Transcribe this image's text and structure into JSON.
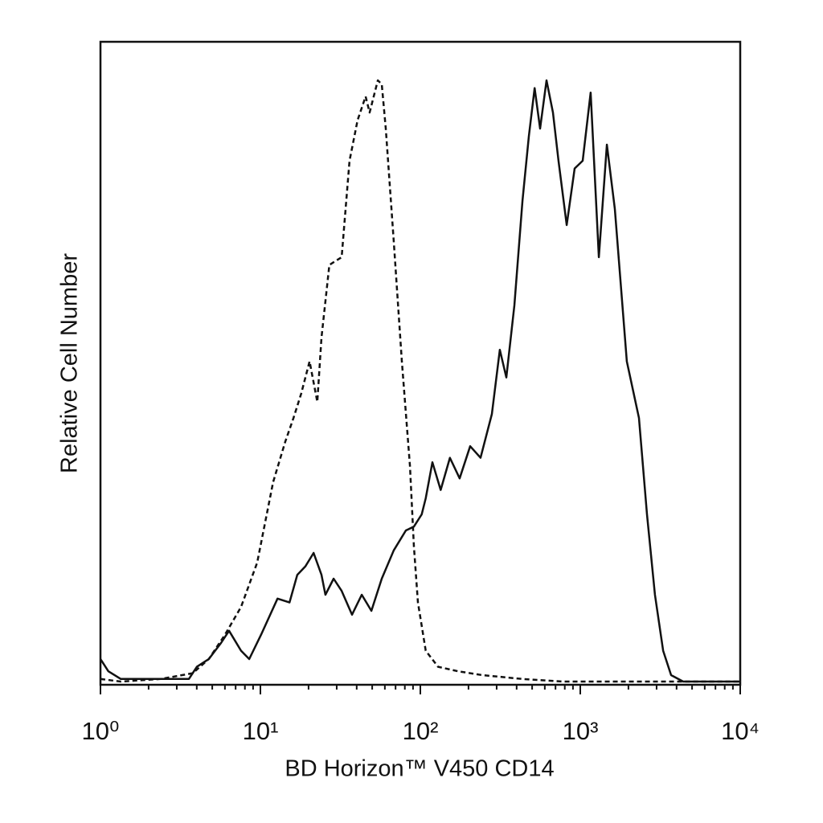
{
  "chart_data": {
    "type": "line",
    "x_label": "BD Horizon™ V450 CD14",
    "y_label": "Relative Cell Number",
    "xlog": true,
    "xlim": [
      1,
      10000
    ],
    "xticks": [
      {
        "value": 1,
        "label": "10⁰"
      },
      {
        "value": 10,
        "label": "10¹"
      },
      {
        "value": 100,
        "label": "10²"
      },
      {
        "value": 1000,
        "label": "10³"
      },
      {
        "value": 10000,
        "label": "10⁴"
      }
    ],
    "xminor_ticks": [
      2,
      3,
      4,
      5,
      6,
      7,
      8,
      9,
      20,
      30,
      40,
      50,
      60,
      70,
      80,
      90,
      200,
      300,
      400,
      500,
      600,
      700,
      800,
      900,
      2000,
      3000,
      4000,
      5000,
      6000,
      7000,
      8000,
      9000
    ],
    "ylim": [
      0,
      100
    ],
    "series": [
      {
        "color": "#111111",
        "dash": true,
        "x": [
          1,
          1.34,
          2.38,
          3.78,
          4.76,
          6.01,
          7.57,
          9.55,
          12.0,
          14.3,
          16.1,
          18.0,
          20.3,
          22.7,
          24.1,
          27.0,
          32.2,
          36.1,
          40.5,
          45.5,
          48.2,
          54.2,
          57.4,
          60.8,
          68.2,
          76.6,
          86.1,
          91.2,
          96.6,
          108,
          129,
          172,
          244,
          435,
          775,
          2466,
          9890
        ],
        "values": [
          0.9,
          0.5,
          0.9,
          1.8,
          4,
          7.8,
          12.1,
          19,
          31.5,
          37.8,
          41.5,
          45.3,
          50.3,
          44,
          54,
          65.3,
          66.5,
          81.5,
          87.8,
          91.5,
          89,
          94,
          93.4,
          86.5,
          69,
          50.3,
          34,
          21.5,
          12.8,
          5.3,
          2.8,
          2.1,
          1.5,
          0.9,
          0.5,
          0.5,
          0.5
        ]
      },
      {
        "color": "#111111",
        "dash": false,
        "x": [
          1,
          1.12,
          1.34,
          2.38,
          3.57,
          4.01,
          4.76,
          5.67,
          6.37,
          7.57,
          8.51,
          10.1,
          12.8,
          15.2,
          17.0,
          19.1,
          21.5,
          24.1,
          25.5,
          28.7,
          32.2,
          37.4,
          43.0,
          49.4,
          57.4,
          68.2,
          81.2,
          91.2,
          102,
          108,
          119,
          134,
          153,
          176,
          205,
          238,
          280,
          314,
          345,
          387,
          435,
          477,
          518,
          561,
          615,
          675,
          731,
          822,
          922,
          1035,
          1161,
          1306,
          1466,
          1644,
          1955,
          2328,
          2612,
          2931,
          3296,
          3698,
          4396,
          9890
        ],
        "values": [
          4,
          2.1,
          0.9,
          0.9,
          0.9,
          2.8,
          4,
          6.5,
          8.4,
          5.3,
          4,
          7.8,
          13.4,
          12.8,
          17.1,
          18.4,
          20.5,
          17.1,
          14,
          16.5,
          14.6,
          10.9,
          14,
          11.5,
          16.5,
          20.9,
          24,
          24.6,
          26.5,
          29,
          34.6,
          30.3,
          35.3,
          32.1,
          37.1,
          35.3,
          42.1,
          52.1,
          47.8,
          59,
          75.3,
          85.3,
          92.8,
          86.5,
          94,
          89,
          81.5,
          71.5,
          80.3,
          81.5,
          92.1,
          66.5,
          84,
          74,
          50.3,
          41.5,
          26.5,
          14,
          5.3,
          1.5,
          0.5,
          0.5
        ]
      }
    ]
  }
}
